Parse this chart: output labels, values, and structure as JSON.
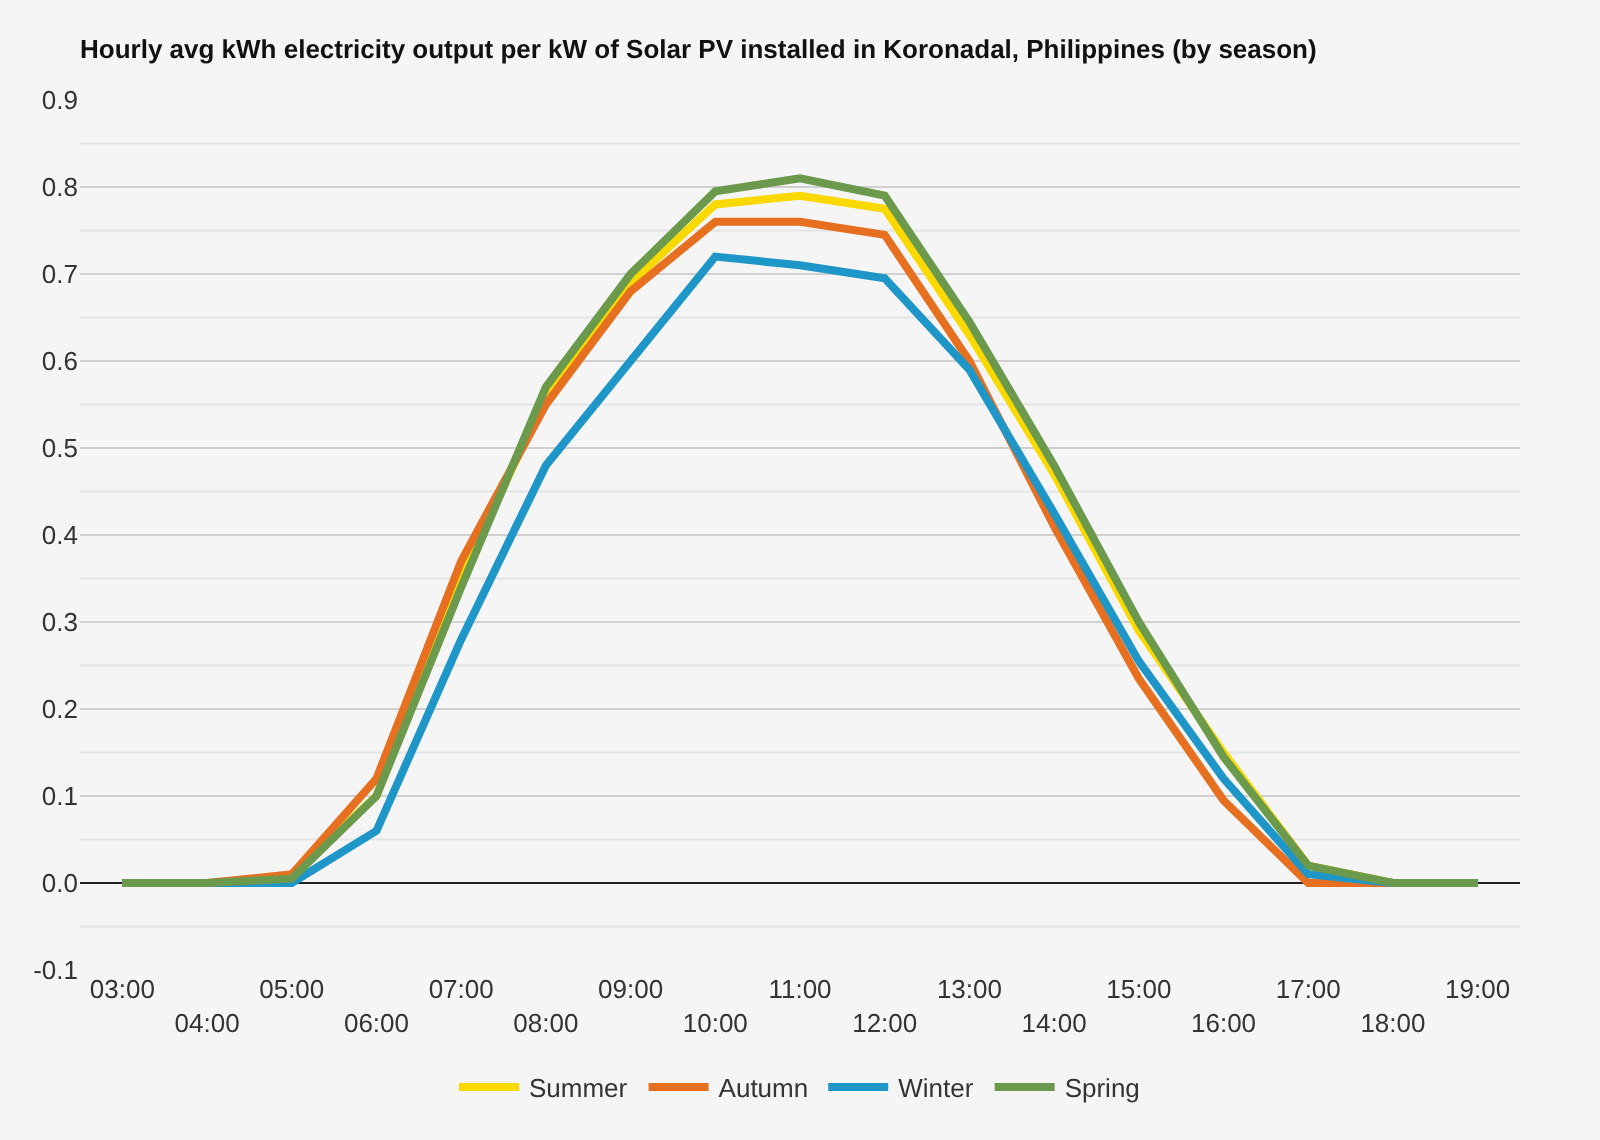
{
  "chart_data": {
    "type": "line",
    "title": "Hourly avg kWh electricity output per kW of Solar PV installed in Koronadal, Philippines (by season)",
    "categories": [
      "03:00",
      "04:00",
      "05:00",
      "06:00",
      "07:00",
      "08:00",
      "09:00",
      "10:00",
      "11:00",
      "12:00",
      "13:00",
      "14:00",
      "15:00",
      "16:00",
      "17:00",
      "18:00",
      "19:00"
    ],
    "series": [
      {
        "name": "Summer",
        "color": "#f9d900",
        "values": [
          null,
          null,
          0.01,
          0.1,
          0.35,
          0.56,
          0.69,
          0.78,
          0.79,
          0.775,
          0.63,
          0.47,
          0.29,
          0.15,
          0.02,
          0,
          0
        ]
      },
      {
        "name": "Autumn",
        "color": "#e6701f",
        "values": [
          0,
          0,
          0.01,
          0.12,
          0.37,
          0.55,
          0.68,
          0.76,
          0.76,
          0.745,
          0.6,
          0.41,
          0.235,
          0.095,
          0,
          0,
          0
        ]
      },
      {
        "name": "Winter",
        "color": "#1e96c8",
        "values": [
          0,
          0,
          0,
          0.06,
          0.28,
          0.48,
          0.6,
          0.72,
          0.71,
          0.695,
          0.59,
          0.425,
          0.255,
          0.12,
          0.01,
          0,
          0
        ]
      },
      {
        "name": "Spring",
        "color": "#6c9a4c",
        "values": [
          0,
          0,
          0.005,
          0.1,
          0.34,
          0.57,
          0.7,
          0.795,
          0.81,
          0.79,
          0.645,
          0.48,
          0.3,
          0.145,
          0.02,
          0,
          0
        ]
      }
    ],
    "ylim": [
      -0.1,
      0.9
    ],
    "yticks": [
      -0.1,
      {
        "value": 0,
        "label": "0.0"
      },
      0.1,
      0.2,
      0.3,
      0.4,
      0.5,
      0.6,
      0.7,
      0.8,
      0.9
    ],
    "grid": "y",
    "legend": "bottom",
    "marker": "none",
    "line_style": "solid"
  }
}
